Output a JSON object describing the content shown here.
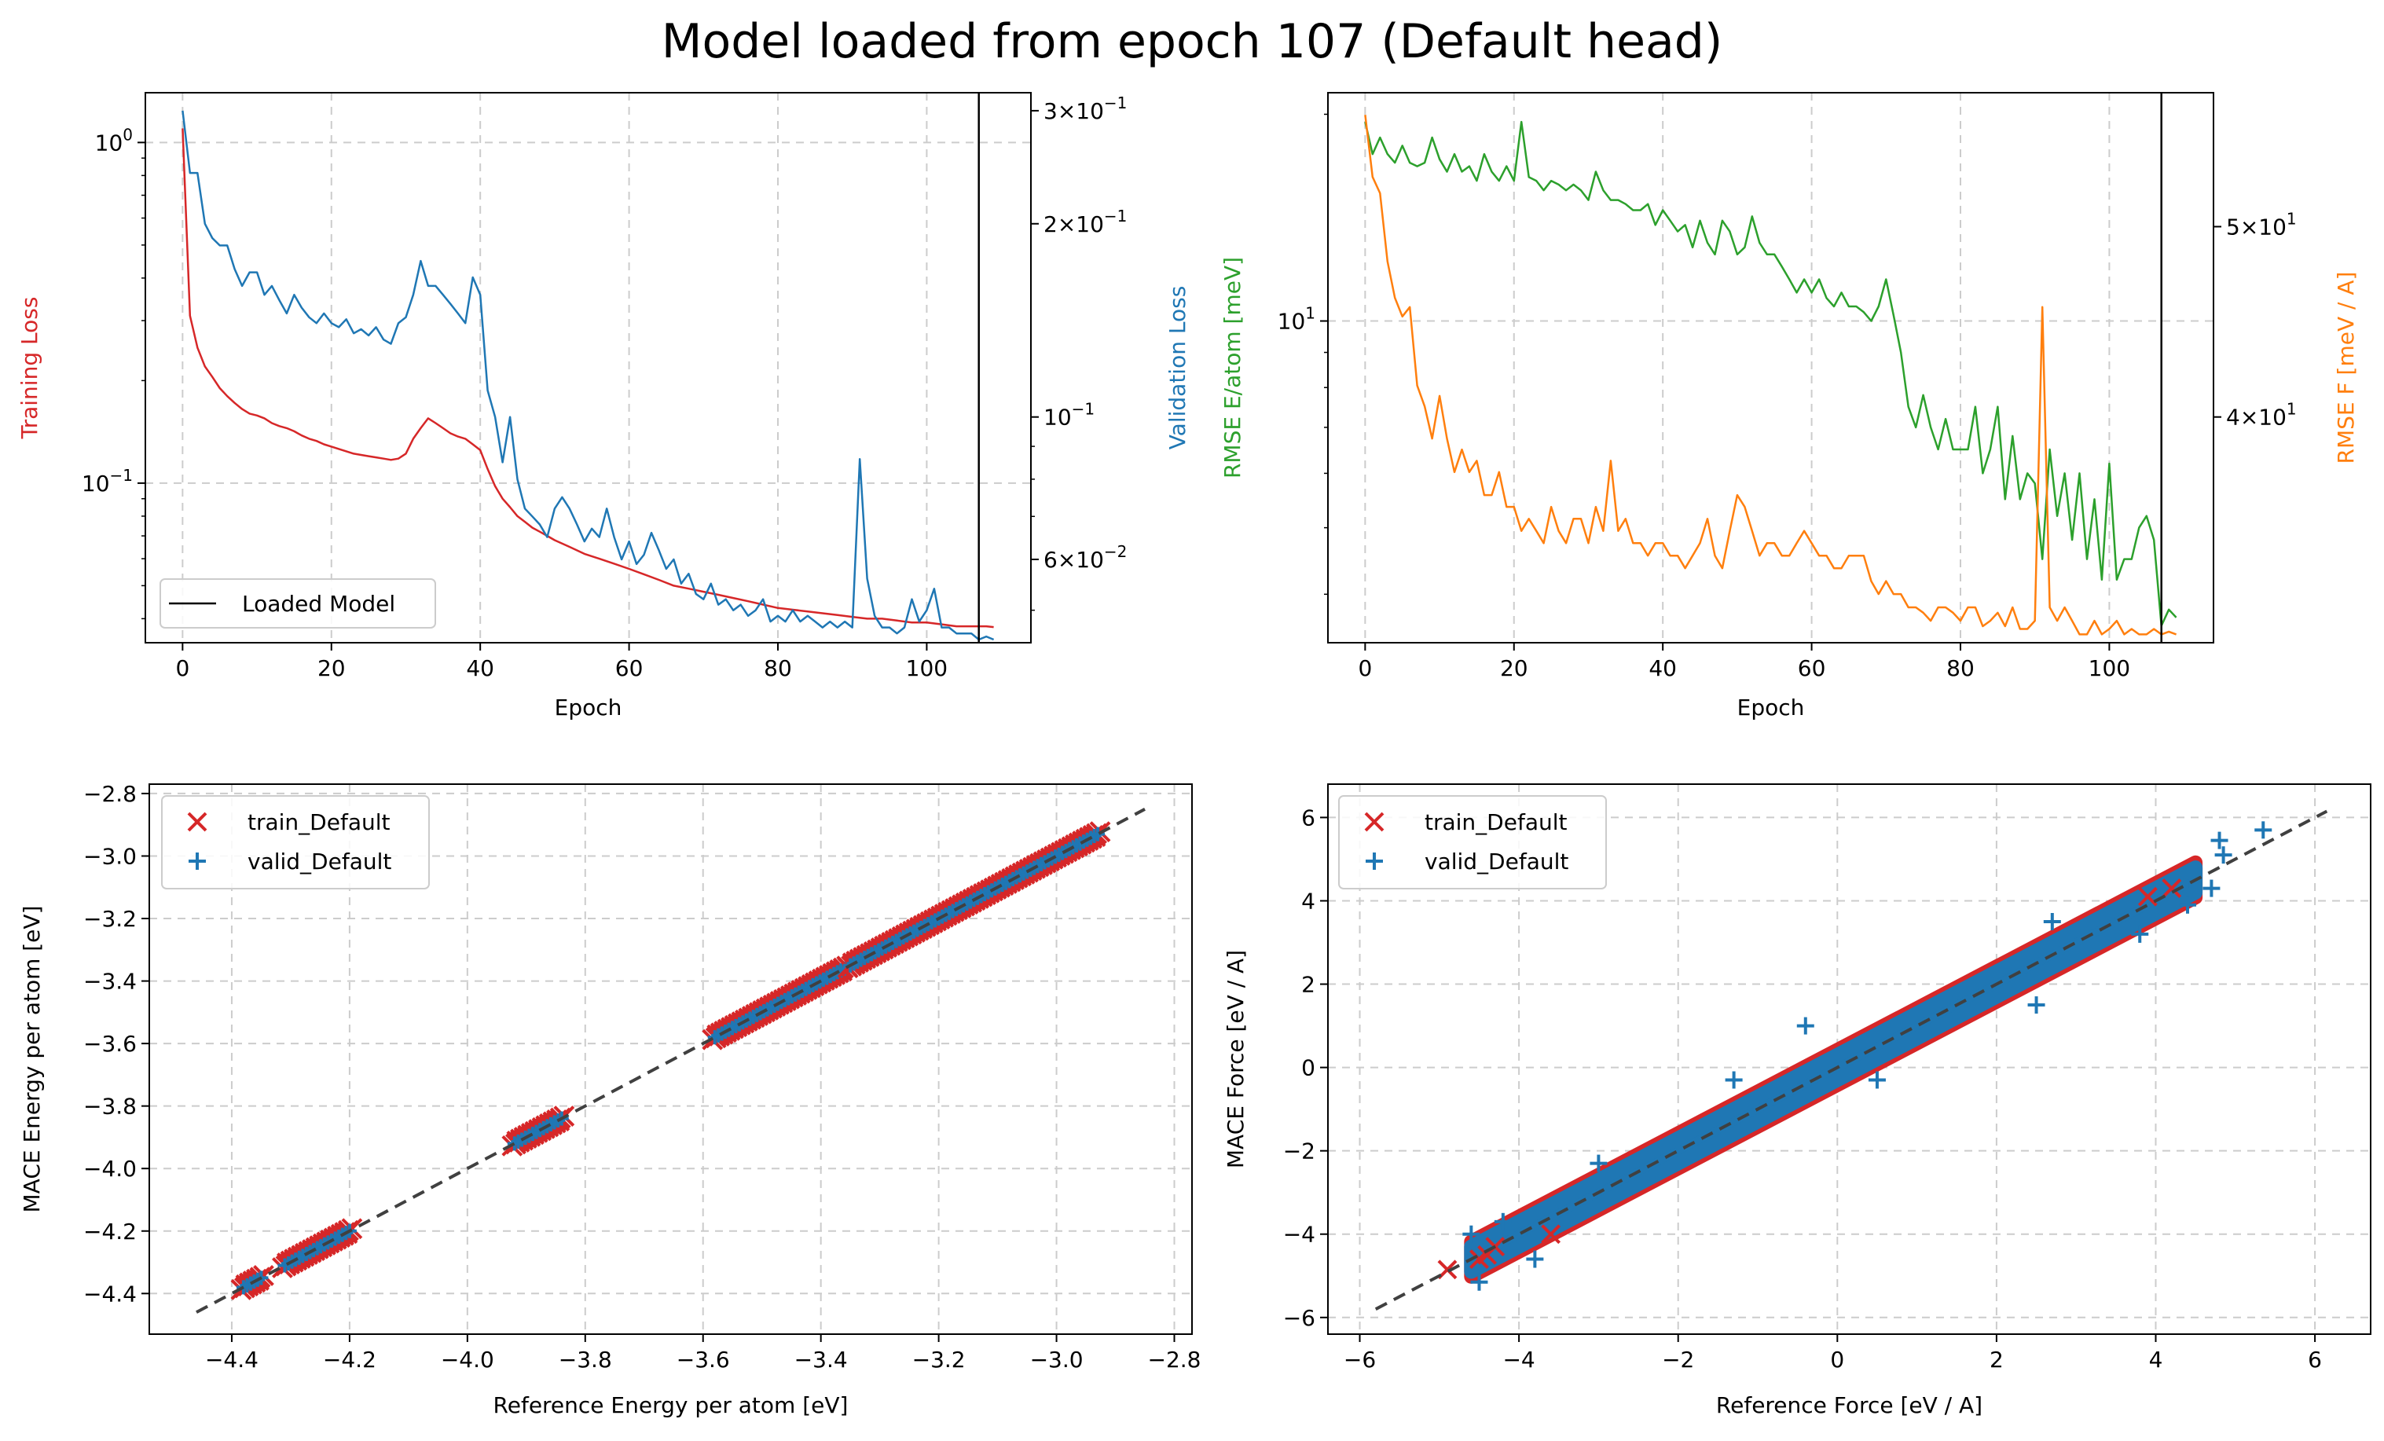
{
  "suptitle": "Model loaded from epoch 107 (Default head)",
  "colors": {
    "train_loss": "#d62728",
    "valid_loss": "#1f77b4",
    "rmse_e": "#2ca02c",
    "rmse_f": "#ff7f0e",
    "train_points": "#d62728",
    "valid_points": "#1f77b4",
    "diagonal": "#404040",
    "grid": "#cccccc"
  },
  "chart_data": [
    {
      "id": "loss",
      "type": "line",
      "xlabel": "Epoch",
      "ylabel_left": "Training Loss",
      "ylabel_right": "Validation Loss",
      "xlim": [
        -5,
        114
      ],
      "xticks": [
        "0",
        "20",
        "40",
        "60",
        "80",
        "100"
      ],
      "yscale": "log",
      "ylim_left": [
        0.034,
        1.4
      ],
      "yticks_left": [
        {
          "v": 1.0,
          "base": "10",
          "exp": "0"
        },
        {
          "v": 0.1,
          "base": "10",
          "exp": "−1"
        }
      ],
      "ylim_right": [
        0.0445,
        0.32
      ],
      "yticks_right": [
        {
          "v": 0.3,
          "m": "3",
          "exp": "−1"
        },
        {
          "v": 0.2,
          "m": "2",
          "exp": "−1"
        },
        {
          "v": 0.1,
          "base": "10",
          "exp": "−1"
        },
        {
          "v": 0.06,
          "m": "6",
          "exp": "−2"
        }
      ],
      "loaded_epoch": 107,
      "legend": [
        "Loaded Model"
      ],
      "grid": true,
      "series": [
        {
          "name": "Training Loss",
          "axis": "left",
          "color_key": "train_loss",
          "x": [
            0,
            1,
            2,
            3,
            4,
            5,
            6,
            7,
            8,
            9,
            10,
            11,
            12,
            13,
            14,
            15,
            16,
            17,
            18,
            19,
            20,
            21,
            22,
            23,
            24,
            25,
            26,
            27,
            28,
            29,
            30,
            31,
            32,
            33,
            34,
            35,
            36,
            37,
            38,
            39,
            40,
            41,
            42,
            43,
            44,
            45,
            46,
            47,
            48,
            49,
            50,
            52,
            54,
            56,
            58,
            60,
            62,
            64,
            66,
            68,
            70,
            72,
            74,
            76,
            78,
            80,
            82,
            84,
            86,
            88,
            90,
            92,
            94,
            96,
            98,
            100,
            102,
            104,
            106,
            108,
            109
          ],
          "y": [
            1.1,
            0.31,
            0.25,
            0.22,
            0.205,
            0.19,
            0.18,
            0.172,
            0.165,
            0.16,
            0.158,
            0.155,
            0.15,
            0.147,
            0.145,
            0.142,
            0.138,
            0.135,
            0.133,
            0.13,
            0.128,
            0.126,
            0.124,
            0.122,
            0.121,
            0.12,
            0.119,
            0.118,
            0.117,
            0.118,
            0.122,
            0.135,
            0.145,
            0.155,
            0.15,
            0.145,
            0.14,
            0.137,
            0.135,
            0.13,
            0.125,
            0.11,
            0.098,
            0.09,
            0.085,
            0.08,
            0.077,
            0.074,
            0.072,
            0.07,
            0.068,
            0.065,
            0.062,
            0.06,
            0.058,
            0.056,
            0.054,
            0.052,
            0.05,
            0.049,
            0.048,
            0.047,
            0.046,
            0.045,
            0.044,
            0.043,
            0.0425,
            0.042,
            0.0415,
            0.041,
            0.0405,
            0.04,
            0.04,
            0.0395,
            0.039,
            0.039,
            0.0385,
            0.038,
            0.038,
            0.038,
            0.0378
          ]
        },
        {
          "name": "Validation Loss",
          "axis": "right",
          "color_key": "valid_loss",
          "x": [
            0,
            1,
            2,
            3,
            4,
            5,
            6,
            7,
            8,
            9,
            10,
            11,
            12,
            13,
            14,
            15,
            16,
            17,
            18,
            19,
            20,
            21,
            22,
            23,
            24,
            25,
            26,
            27,
            28,
            29,
            30,
            31,
            32,
            33,
            34,
            35,
            36,
            37,
            38,
            39,
            40,
            41,
            42,
            43,
            44,
            45,
            46,
            47,
            48,
            49,
            50,
            51,
            52,
            53,
            54,
            55,
            56,
            57,
            58,
            59,
            60,
            61,
            62,
            63,
            64,
            65,
            66,
            67,
            68,
            69,
            70,
            71,
            72,
            73,
            74,
            75,
            76,
            77,
            78,
            79,
            80,
            81,
            82,
            83,
            84,
            85,
            86,
            87,
            88,
            89,
            90,
            91,
            92,
            93,
            94,
            95,
            96,
            97,
            98,
            99,
            100,
            101,
            102,
            103,
            104,
            105,
            106,
            107,
            108,
            109
          ],
          "y": [
            0.3,
            0.24,
            0.24,
            0.2,
            0.19,
            0.185,
            0.185,
            0.17,
            0.16,
            0.168,
            0.168,
            0.155,
            0.16,
            0.152,
            0.145,
            0.155,
            0.148,
            0.143,
            0.14,
            0.145,
            0.14,
            0.138,
            0.142,
            0.135,
            0.137,
            0.134,
            0.138,
            0.132,
            0.13,
            0.14,
            0.143,
            0.155,
            0.175,
            0.16,
            0.16,
            0.155,
            0.15,
            0.145,
            0.14,
            0.165,
            0.155,
            0.11,
            0.1,
            0.085,
            0.1,
            0.08,
            0.072,
            0.07,
            0.068,
            0.065,
            0.072,
            0.075,
            0.072,
            0.068,
            0.064,
            0.067,
            0.065,
            0.072,
            0.065,
            0.06,
            0.064,
            0.059,
            0.061,
            0.066,
            0.062,
            0.058,
            0.06,
            0.055,
            0.057,
            0.053,
            0.052,
            0.055,
            0.051,
            0.052,
            0.05,
            0.051,
            0.049,
            0.05,
            0.052,
            0.048,
            0.049,
            0.048,
            0.05,
            0.048,
            0.049,
            0.048,
            0.047,
            0.048,
            0.047,
            0.048,
            0.047,
            0.086,
            0.056,
            0.049,
            0.047,
            0.047,
            0.046,
            0.047,
            0.052,
            0.048,
            0.05,
            0.054,
            0.047,
            0.047,
            0.046,
            0.046,
            0.046,
            0.045,
            0.0455,
            0.045
          ]
        }
      ]
    },
    {
      "id": "rmse",
      "type": "line",
      "xlabel": "Epoch",
      "ylabel_left": "RMSE E/atom [meV]",
      "ylabel_right": "RMSE F [meV / A]",
      "xlim": [
        -5,
        114
      ],
      "xticks": [
        "0",
        "20",
        "40",
        "60",
        "80",
        "100"
      ],
      "yscale": "log",
      "ylim_left": [
        3.4,
        21.5
      ],
      "yticks_left": [
        {
          "v": 10,
          "base": "10",
          "exp": "1"
        }
      ],
      "ylim_right": [
        30.7,
        58.5
      ],
      "yticks_right": [
        {
          "v": 50,
          "m": "5",
          "exp": "1"
        },
        {
          "v": 40,
          "m": "4",
          "exp": "1"
        }
      ],
      "loaded_epoch": 107,
      "grid": true,
      "series": [
        {
          "name": "RMSE E/atom",
          "axis": "left",
          "color_key": "rmse_e",
          "x": [
            0,
            1,
            2,
            3,
            4,
            5,
            6,
            7,
            8,
            9,
            10,
            11,
            12,
            13,
            14,
            15,
            16,
            17,
            18,
            19,
            20,
            21,
            22,
            23,
            24,
            25,
            26,
            27,
            28,
            29,
            30,
            31,
            32,
            33,
            34,
            35,
            36,
            37,
            38,
            39,
            40,
            41,
            42,
            43,
            44,
            45,
            46,
            47,
            48,
            49,
            50,
            51,
            52,
            53,
            54,
            55,
            56,
            57,
            58,
            59,
            60,
            61,
            62,
            63,
            64,
            65,
            66,
            67,
            68,
            69,
            70,
            71,
            72,
            73,
            74,
            75,
            76,
            77,
            78,
            79,
            80,
            81,
            82,
            83,
            84,
            85,
            86,
            87,
            88,
            89,
            90,
            91,
            92,
            93,
            94,
            95,
            96,
            97,
            98,
            99,
            100,
            101,
            102,
            103,
            104,
            105,
            106,
            107,
            108,
            109
          ],
          "y": [
            19.5,
            17.5,
            18.5,
            17.5,
            17,
            18,
            17,
            16.8,
            17,
            18.5,
            17.2,
            16.5,
            17.5,
            16.5,
            16.8,
            16,
            17.5,
            16.5,
            16,
            16.8,
            16,
            19.5,
            16.2,
            16,
            15.5,
            16,
            15.8,
            15.5,
            15.8,
            15.5,
            15,
            16.5,
            15.5,
            15,
            15,
            14.8,
            14.5,
            14.5,
            14.8,
            13.8,
            14.5,
            14,
            13.5,
            13.8,
            12.8,
            14,
            13,
            12.5,
            14,
            13.5,
            12.5,
            12.8,
            14.2,
            13,
            12.5,
            12.5,
            12,
            11.5,
            11,
            11.5,
            11,
            11.5,
            10.8,
            10.5,
            11,
            10.5,
            10.5,
            10.3,
            10,
            10.5,
            11.5,
            10.2,
            9,
            7.5,
            7,
            7.8,
            7,
            6.5,
            7.2,
            6.5,
            6.5,
            6.5,
            7.5,
            6,
            6.5,
            7.5,
            5.5,
            6.8,
            5.5,
            6,
            5.8,
            4.5,
            6.5,
            5.2,
            6,
            4.8,
            6,
            4.5,
            5.5,
            4.2,
            6.2,
            4.2,
            4.5,
            4.5,
            5,
            5.2,
            4.8,
            3.6,
            3.8,
            3.7
          ]
        },
        {
          "name": "RMSE F",
          "axis": "right",
          "color_key": "rmse_f",
          "x": [
            0,
            1,
            2,
            3,
            4,
            5,
            6,
            7,
            8,
            9,
            10,
            11,
            12,
            13,
            14,
            15,
            16,
            17,
            18,
            19,
            20,
            21,
            22,
            23,
            24,
            25,
            26,
            27,
            28,
            29,
            30,
            31,
            32,
            33,
            34,
            35,
            36,
            37,
            38,
            39,
            40,
            41,
            42,
            43,
            44,
            45,
            46,
            47,
            48,
            49,
            50,
            51,
            52,
            53,
            54,
            55,
            56,
            57,
            58,
            59,
            60,
            61,
            62,
            63,
            64,
            65,
            66,
            67,
            68,
            69,
            70,
            71,
            72,
            73,
            74,
            75,
            76,
            77,
            78,
            79,
            80,
            81,
            82,
            83,
            84,
            85,
            86,
            87,
            88,
            89,
            90,
            91,
            92,
            93,
            94,
            95,
            96,
            97,
            98,
            99,
            100,
            101,
            102,
            103,
            104,
            105,
            106,
            107,
            108,
            109
          ],
          "y": [
            57,
            53,
            52,
            48,
            46,
            45,
            45.5,
            41.5,
            40.5,
            39,
            41,
            39,
            37.5,
            38.5,
            37.5,
            38,
            36.5,
            36.5,
            37.5,
            36,
            36,
            35,
            35.5,
            35,
            34.5,
            36,
            35,
            34.5,
            35.5,
            35.5,
            34.5,
            36,
            35,
            38,
            35,
            35.5,
            34.5,
            34.5,
            34,
            34.5,
            34.5,
            34,
            34,
            33.5,
            34,
            34.5,
            35.5,
            34,
            33.5,
            35,
            36.5,
            36,
            35,
            34,
            34.5,
            34.5,
            34,
            34,
            34.5,
            35,
            34.5,
            34,
            34,
            33.5,
            33.5,
            34,
            34,
            34,
            33,
            32.5,
            33,
            32.5,
            32.5,
            32,
            32,
            31.8,
            31.5,
            32,
            32,
            31.8,
            31.5,
            32,
            32,
            31.3,
            31.5,
            31.8,
            31.3,
            32,
            31.2,
            31.2,
            31.5,
            45.5,
            32,
            31.5,
            32,
            31.5,
            31,
            31,
            31.5,
            31,
            31.2,
            31.5,
            31,
            31.2,
            31,
            31,
            31.2,
            31,
            31.1,
            31
          ]
        }
      ]
    },
    {
      "id": "energy",
      "type": "scatter",
      "xlabel": "Reference Energy per atom [eV]",
      "ylabel": "MACE Energy per atom [eV]",
      "xlim": [
        -4.54,
        -2.77
      ],
      "ylim": [
        -4.53,
        -2.77
      ],
      "xticks": [
        "−4.4",
        "−4.2",
        "−4.0",
        "−3.8",
        "−3.6",
        "−3.4",
        "−3.2",
        "−3.0",
        "−2.8"
      ],
      "yticks": [
        "−4.4",
        "−4.2",
        "−4.0",
        "−3.8",
        "−3.6",
        "−3.4",
        "−3.2",
        "−3.0",
        "−2.8"
      ],
      "legend": [
        "train_Default",
        "valid_Default"
      ],
      "grid": true,
      "diagonal": [
        -4.46,
        -2.85
      ],
      "clusters": [
        {
          "from": -4.38,
          "to": -4.35
        },
        {
          "from": -4.31,
          "to": -4.2
        },
        {
          "from": -3.92,
          "to": -3.84
        },
        {
          "from": -3.58,
          "to": -3.36
        },
        {
          "from": -3.35,
          "to": -2.93
        }
      ]
    },
    {
      "id": "force",
      "type": "scatter",
      "xlabel": "Reference Force [eV / A]",
      "ylabel": "MACE Force [eV / A]",
      "xlim": [
        -6.4,
        6.7
      ],
      "ylim": [
        -6.4,
        6.8
      ],
      "xticks": [
        "−6",
        "−4",
        "−2",
        "0",
        "2",
        "4",
        "6"
      ],
      "yticks": [
        "−6",
        "−4",
        "−2",
        "0",
        "2",
        "4",
        "6"
      ],
      "legend": [
        "train_Default",
        "valid_Default"
      ],
      "grid": true,
      "diagonal": [
        -5.8,
        6.15
      ],
      "band_range": [
        -4.6,
        4.5
      ],
      "outliers_train": [
        [
          -4.9,
          -4.85
        ],
        [
          -4.4,
          -4.5
        ],
        [
          -4.3,
          -4.3
        ],
        [
          -4.5,
          -4.6
        ],
        [
          4.2,
          4.3
        ],
        [
          3.9,
          4.1
        ],
        [
          -3.6,
          -4.0
        ]
      ],
      "outliers_valid": [
        [
          5.35,
          5.7
        ],
        [
          4.8,
          5.45
        ],
        [
          4.85,
          5.1
        ],
        [
          4.7,
          4.3
        ],
        [
          4.4,
          3.9
        ],
        [
          3.8,
          3.2
        ],
        [
          2.7,
          3.5
        ],
        [
          -4.5,
          -5.15
        ],
        [
          -3.8,
          -4.6
        ],
        [
          -4.6,
          -4.0
        ],
        [
          -4.2,
          -3.7
        ],
        [
          -1.3,
          -0.3
        ],
        [
          0.5,
          -0.3
        ],
        [
          -3.0,
          -2.3
        ],
        [
          2.5,
          1.5
        ],
        [
          -0.4,
          1.0
        ]
      ]
    }
  ]
}
